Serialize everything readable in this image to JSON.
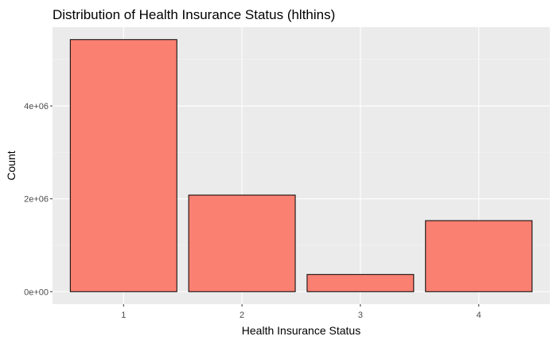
{
  "chart_data": {
    "type": "bar",
    "title": "Distribution of Health Insurance Status (hlthins)",
    "xlabel": "Health Insurance Status",
    "ylabel": "Count",
    "categories": [
      "1",
      "2",
      "3",
      "4"
    ],
    "values": [
      5430000,
      2080000,
      370000,
      1530000
    ],
    "y_ticks": [
      {
        "value": 0,
        "label": "0e+00"
      },
      {
        "value": 2000000,
        "label": "2e+06"
      },
      {
        "value": 4000000,
        "label": "4e+06"
      }
    ],
    "ylim": [
      -270000,
      5700000
    ],
    "grid": true,
    "legend": "none",
    "colors": {
      "bar_fill": "#fa8072",
      "bar_stroke": "#000000",
      "panel_background": "#ebebeb",
      "grid_major": "#ffffff",
      "grid_minor": "#f5f5f5"
    }
  }
}
